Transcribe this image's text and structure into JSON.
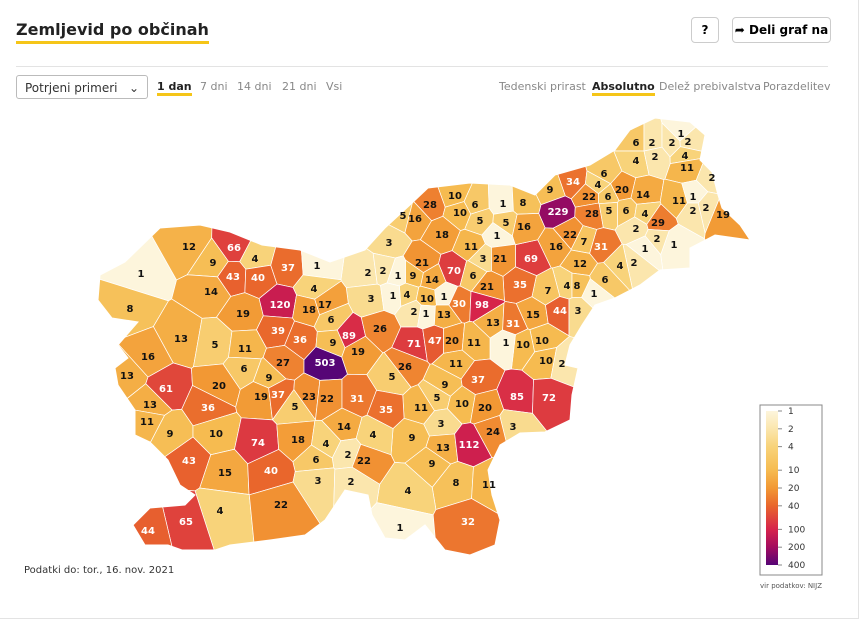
{
  "header": {
    "title": "Zemljevid po občinah",
    "help_button": "?",
    "share_button": "Deli graf na"
  },
  "controls": {
    "select": "Potrjeni primeri",
    "periods": [
      "1 dan",
      "7 dni",
      "14 dni",
      "21 dni",
      "Vsi"
    ],
    "active_period": 0,
    "views": [
      "Tedenski prirast",
      "Absolutno",
      "Delež prebivalstva",
      "Porazdelitev"
    ],
    "active_view": 1
  },
  "chart_data": {
    "type": "choropleth",
    "values": [
      1,
      6,
      2,
      2,
      2,
      4,
      2,
      4,
      11,
      2,
      34,
      6,
      4,
      20,
      14,
      9,
      229,
      22,
      28,
      6,
      5,
      6,
      4,
      2,
      29,
      11,
      1,
      2,
      2,
      19,
      1,
      2,
      1,
      2,
      4,
      6,
      31,
      7,
      22,
      16,
      12,
      4,
      8,
      7,
      69,
      35,
      15,
      44,
      3,
      1,
      10,
      10,
      2,
      28,
      10,
      6,
      1,
      8,
      5,
      16,
      10,
      5,
      5,
      16,
      3,
      18,
      11,
      1,
      21,
      70,
      3,
      21,
      9,
      14,
      6,
      21,
      1,
      4,
      10,
      1,
      2,
      2,
      3,
      1,
      2,
      1,
      13,
      30,
      98,
      13,
      31,
      10,
      1,
      71,
      47,
      20,
      11,
      11,
      9,
      37,
      5,
      10,
      20,
      85,
      72,
      3,
      13,
      112,
      24,
      3,
      11,
      9,
      9,
      8,
      11,
      4,
      1,
      32,
      1,
      12,
      66,
      9,
      4,
      43,
      40,
      37,
      1,
      4,
      14,
      8,
      120,
      18,
      17,
      6,
      19,
      13,
      39,
      5,
      11,
      36,
      9,
      89,
      19,
      26,
      16,
      13,
      6,
      27,
      503,
      26,
      5,
      61,
      20,
      9,
      13,
      11,
      36,
      19,
      37,
      23,
      5,
      22,
      31,
      35,
      9,
      10,
      74,
      18,
      4,
      14,
      4,
      2,
      6,
      22,
      43,
      15,
      40,
      3,
      2,
      4,
      22,
      65,
      44
    ],
    "legend": {
      "ticks": [
        1,
        2,
        4,
        10,
        20,
        40,
        100,
        200,
        400
      ],
      "colors": [
        "#fdf5dc",
        "#fbe6ad",
        "#f8d37a",
        "#f6bb50",
        "#f29834",
        "#e9662c",
        "#d6234b",
        "#a30c5f",
        "#560576"
      ]
    },
    "source": "vir podatkov: NIJZ"
  },
  "footer": "Podatki do: tor., 16. nov. 2021"
}
